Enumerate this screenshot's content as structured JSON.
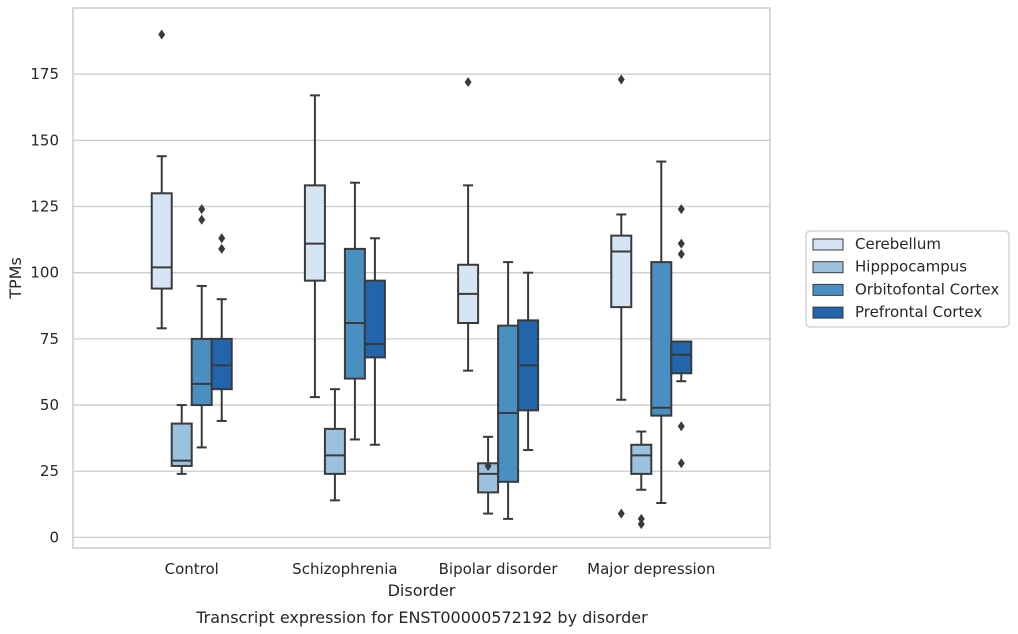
{
  "chart_data": {
    "type": "box",
    "caption": "Transcript expression for ENST00000572192 by disorder",
    "xlabel": "Disorder",
    "ylabel": "TPMs",
    "ylim": [
      -4,
      200
    ],
    "yticks": [
      0,
      25,
      50,
      75,
      100,
      125,
      150,
      175
    ],
    "grid": "horizontal",
    "legend_placement": "right",
    "categories": [
      "Control",
      "Schizophrenia",
      "Bipolar disorder",
      "Major depression"
    ],
    "series": [
      {
        "name": "Cerebellum",
        "color": "#d6e5f4",
        "boxes": [
          {
            "whislo": 79,
            "q1": 94,
            "med": 102,
            "q3": 130,
            "whishi": 144,
            "fliers": [
              190
            ]
          },
          {
            "whislo": 53,
            "q1": 97,
            "med": 111,
            "q3": 133,
            "whishi": 167,
            "fliers": []
          },
          {
            "whislo": 63,
            "q1": 81,
            "med": 92,
            "q3": 103,
            "whishi": 133,
            "fliers": [
              172
            ]
          },
          {
            "whislo": 52,
            "q1": 87,
            "med": 108,
            "q3": 114,
            "whishi": 122,
            "fliers": [
              173,
              9
            ]
          }
        ]
      },
      {
        "name": "Hipppocampus",
        "color": "#9ac2de",
        "boxes": [
          {
            "whislo": 24,
            "q1": 27,
            "med": 29,
            "q3": 43,
            "whishi": 50,
            "fliers": []
          },
          {
            "whislo": 14,
            "q1": 24,
            "med": 31,
            "q3": 41,
            "whishi": 56,
            "fliers": []
          },
          {
            "whislo": 9,
            "q1": 17,
            "med": 24,
            "q3": 28,
            "whishi": 38,
            "fliers": [
              27
            ]
          },
          {
            "whislo": 18,
            "q1": 24,
            "med": 31,
            "q3": 35,
            "whishi": 40,
            "fliers": [
              7,
              5
            ]
          }
        ]
      },
      {
        "name": "Orbitofontal Cortex",
        "color": "#4a8fc1",
        "boxes": [
          {
            "whislo": 34,
            "q1": 50,
            "med": 58,
            "q3": 75,
            "whishi": 95,
            "fliers": [
              124,
              120
            ]
          },
          {
            "whislo": 37,
            "q1": 60,
            "med": 81,
            "q3": 109,
            "whishi": 134,
            "fliers": []
          },
          {
            "whislo": 7,
            "q1": 21,
            "med": 47,
            "q3": 80,
            "whishi": 104,
            "fliers": []
          },
          {
            "whislo": 13,
            "q1": 46,
            "med": 49,
            "q3": 104,
            "whishi": 142,
            "fliers": []
          }
        ]
      },
      {
        "name": "Prefrontal Cortex",
        "color": "#2166ac",
        "boxes": [
          {
            "whislo": 44,
            "q1": 56,
            "med": 65,
            "q3": 75,
            "whishi": 90,
            "fliers": [
              113,
              109
            ]
          },
          {
            "whislo": 35,
            "q1": 68,
            "med": 73,
            "q3": 97,
            "whishi": 113,
            "fliers": []
          },
          {
            "whislo": 33,
            "q1": 48,
            "med": 65,
            "q3": 82,
            "whishi": 100,
            "fliers": []
          },
          {
            "whislo": 59,
            "q1": 62,
            "med": 69,
            "q3": 74,
            "whishi": 74,
            "fliers": [
              124,
              111,
              107,
              42,
              28
            ]
          }
        ]
      }
    ]
  }
}
